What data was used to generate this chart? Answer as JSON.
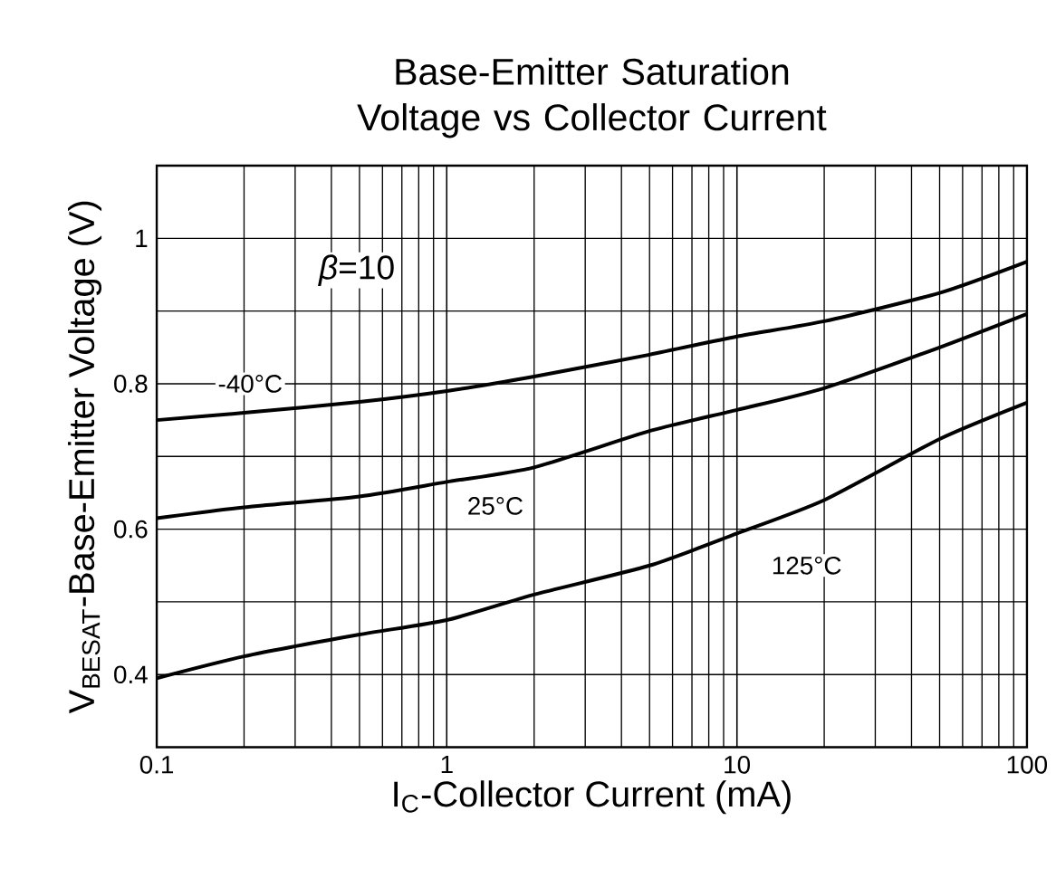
{
  "chart_data": {
    "type": "line",
    "title": "Base-Emitter Saturation Voltage vs Collector Current",
    "xlabel": "I$_{C}$-Collector Current (mA)",
    "ylabel": "V$_{BESAT}$-Base-Emitter Voltage (V)",
    "x": [
      0.1,
      0.2,
      0.5,
      1,
      2,
      5,
      10,
      20,
      50,
      100
    ],
    "series": [
      {
        "color": "#000000",
        "values": [
          0.75,
          0.76,
          0.775,
          0.79,
          0.81,
          0.84,
          0.865,
          0.886,
          0.925,
          0.968
        ]
      },
      {
        "color": "#000000",
        "values": [
          0.615,
          0.63,
          0.645,
          0.665,
          0.685,
          0.735,
          0.764,
          0.794,
          0.85,
          0.896
        ]
      },
      {
        "color": "#000000",
        "values": [
          0.395,
          0.425,
          0.455,
          0.475,
          0.51,
          0.55,
          0.594,
          0.64,
          0.724,
          0.774
        ]
      }
    ],
    "annotations": [
      "*β*=10",
      {
        "text": "-40°C",
        "x": 0.21,
        "y": 0.8
      },
      {
        "text": "25°C",
        "x": 1.47,
        "y": 0.632
      },
      {
        "text": "125°C",
        "x": 17.4,
        "y": 0.55
      }
    ],
    "log": "x",
    "grid": true,
    "marker": "none",
    "line_style": "solid",
    "xlim": [
      0.1,
      100
    ],
    "xticks": [
      0.1,
      1,
      10,
      100
    ],
    "ylim": [
      0.3,
      1.1
    ],
    "yticks": [
      0.4,
      0.6,
      0.8,
      1
    ]
  }
}
